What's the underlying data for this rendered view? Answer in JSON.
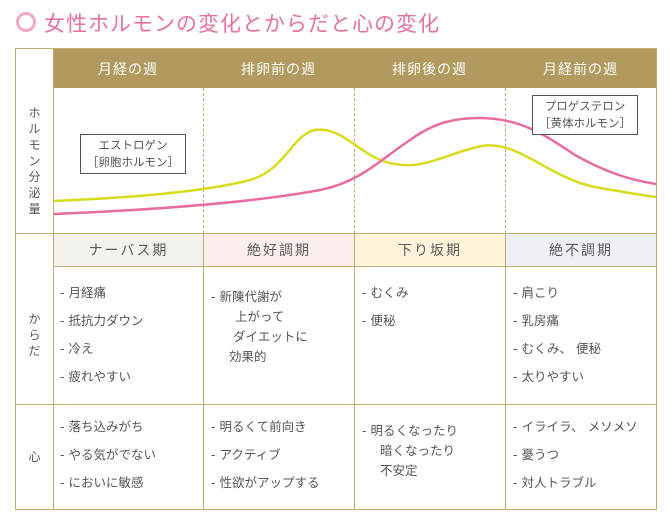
{
  "title": "女性ホルモンの変化とからだと心の変化",
  "colors": {
    "title": "#e5739e",
    "header": "#b29a5f",
    "estrogen": "#d7dc1f",
    "progesterone": "#e86ca1"
  },
  "headers": [
    "月経の週",
    "排卵前の週",
    "排卵後の週",
    "月経前の週"
  ],
  "row_labels": {
    "hormone": [
      "ホ",
      "ル",
      "モ",
      "ン",
      "分",
      "泌",
      "量"
    ],
    "body": [
      "か",
      "ら",
      "だ"
    ],
    "mind": "心"
  },
  "hormones": {
    "estrogen": {
      "name": "エストロゲン",
      "sub": "［卵胞ホルモン］"
    },
    "progesterone": {
      "name": "プロゲステロン",
      "sub": "［黄体ホルモン］"
    }
  },
  "phases": [
    "ナーバス期",
    "絶好調期",
    "下り坂期",
    "絶不調期"
  ],
  "phase_colors": [
    "#f3f2ec",
    "#fdeeee",
    "#fff3d9",
    "#eef0f6"
  ],
  "body": [
    [
      "- 月経痛",
      "- 抵抗力ダウン",
      "- 冷え",
      "- 疲れやすい"
    ],
    [
      "- 新陳代謝が",
      "上がって",
      "ダイエットに",
      "効果的"
    ],
    [
      "- むくみ",
      "- 便秘"
    ],
    [
      "- 肩こり",
      "- 乳房痛",
      "- むくみ、 便秘",
      "- 太りやすい"
    ]
  ],
  "mind": [
    [
      "- 落ち込みがち",
      "- やる気がでない",
      "- においに敏感"
    ],
    [
      "- 明るくて前向き",
      "- アクティブ",
      "- 性欲がアップする"
    ],
    [
      "- 明るくなったり",
      "暗くなったり",
      "不安定"
    ],
    [
      "- イライラ、 メソメソ",
      "- 憂うつ",
      "- 対人トラブル"
    ]
  ]
}
